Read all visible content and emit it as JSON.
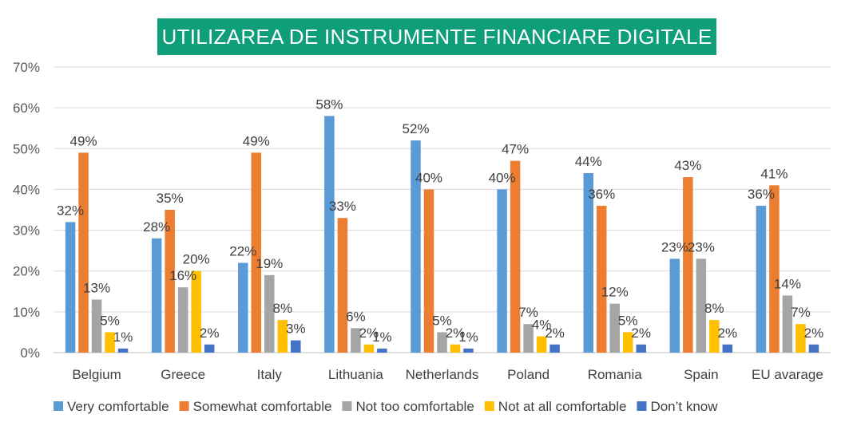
{
  "chart_data": {
    "type": "bar",
    "title": "UTILIZAREA DE INSTRUMENTE FINANCIARE DIGITALE",
    "xlabel": "",
    "ylabel": "",
    "ylim": [
      0,
      70
    ],
    "yticks": [
      "0%",
      "10%",
      "20%",
      "30%",
      "40%",
      "50%",
      "60%",
      "70%"
    ],
    "grid": true,
    "legend_position": "bottom",
    "categories": [
      "Belgium",
      "Greece",
      "Italy",
      "Lithuania",
      "Netherlands",
      "Poland",
      "Romania",
      "Spain",
      "EU avarage"
    ],
    "series": [
      {
        "name": "Very comfortable",
        "color": "#5b9bd5",
        "values": [
          32,
          28,
          22,
          58,
          52,
          40,
          44,
          23,
          36
        ],
        "labels": [
          "32%",
          "28%",
          "22%",
          "58%",
          "52%",
          "40%",
          "44%",
          "23%",
          "36%"
        ]
      },
      {
        "name": "Somewhat comfortable",
        "color": "#ed7d31",
        "values": [
          49,
          35,
          49,
          33,
          40,
          47,
          36,
          43,
          41
        ],
        "labels": [
          "49%",
          "35%",
          "49%",
          "33%",
          "40%",
          "47%",
          "36%",
          "43%",
          "41%"
        ]
      },
      {
        "name": "Not too comfortable",
        "color": "#a5a5a5",
        "values": [
          13,
          16,
          19,
          6,
          5,
          7,
          12,
          23,
          14
        ],
        "labels": [
          "13%",
          "16%",
          "19%",
          "6%",
          "5%",
          "7%",
          "12%",
          "23%",
          "14%"
        ]
      },
      {
        "name": "Not at all comfortable",
        "color": "#ffc000",
        "values": [
          5,
          20,
          8,
          2,
          2,
          4,
          5,
          8,
          7
        ],
        "labels": [
          "5%",
          "20%",
          "8%",
          "2%",
          "2%",
          "4%",
          "5%",
          "8%",
          "7%"
        ]
      },
      {
        "name": "Don’t know",
        "color": "#4472c4",
        "values": [
          1,
          2,
          3,
          1,
          1,
          2,
          2,
          2,
          2
        ],
        "labels": [
          "1%",
          "2%",
          "3%",
          "1%",
          "1%",
          "2%",
          "2%",
          "2%",
          "2%"
        ]
      }
    ]
  }
}
